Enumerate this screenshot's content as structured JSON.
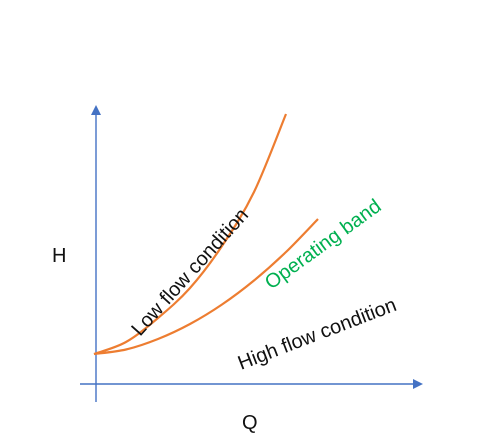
{
  "chart_data": {
    "type": "line",
    "xlabel": "Q",
    "ylabel": "H",
    "grid": false,
    "colors": {
      "axis": "#4472C4",
      "curve": "#ED7D31",
      "band_label": "#00B050",
      "text": "#111111"
    },
    "series": [
      {
        "name": "Low flow condition",
        "x": [
          0.0,
          0.5,
          1.0,
          1.5,
          2.0,
          2.5,
          3.0
        ],
        "y": [
          0.8,
          1.2,
          2.0,
          3.0,
          4.4,
          6.2,
          8.8
        ]
      },
      {
        "name": "High flow condition",
        "x": [
          0.0,
          0.5,
          1.0,
          1.5,
          2.0,
          2.5,
          3.0,
          3.5
        ],
        "y": [
          0.8,
          0.95,
          1.3,
          1.8,
          2.45,
          3.25,
          4.2,
          5.3
        ]
      }
    ],
    "annotations": [
      {
        "text": "Operating band",
        "color": "#00B050"
      }
    ]
  }
}
